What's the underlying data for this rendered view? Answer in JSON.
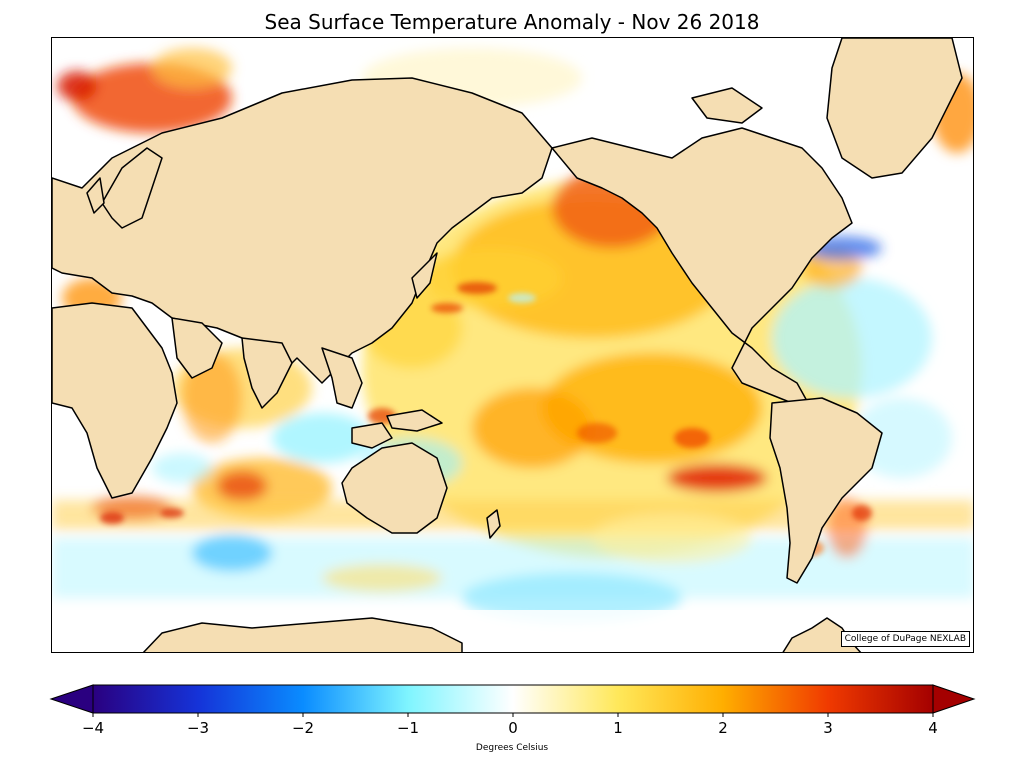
{
  "title": "Sea Surface Temperature Anomaly - Nov 26 2018",
  "credit": "College of DuPage NEXLAB",
  "colorbar": {
    "label": "Degrees Celsius",
    "min": -4,
    "max": 4,
    "ticks": [
      "−4",
      "−3",
      "−2",
      "−1",
      "0",
      "1",
      "2",
      "3",
      "4"
    ],
    "tick_values": [
      -4,
      -3,
      -2,
      -1,
      0,
      1,
      2,
      3,
      4
    ],
    "colors": [
      "#2a0080",
      "#1533d8",
      "#0a8cff",
      "#7ff5ff",
      "#ffffff",
      "#ffe85a",
      "#ffae00",
      "#f03a00",
      "#a40000"
    ]
  },
  "map": {
    "land_color": "#f5deb3",
    "coast_color": "#000000",
    "projection": "Pacific-centered (Miller)"
  }
}
